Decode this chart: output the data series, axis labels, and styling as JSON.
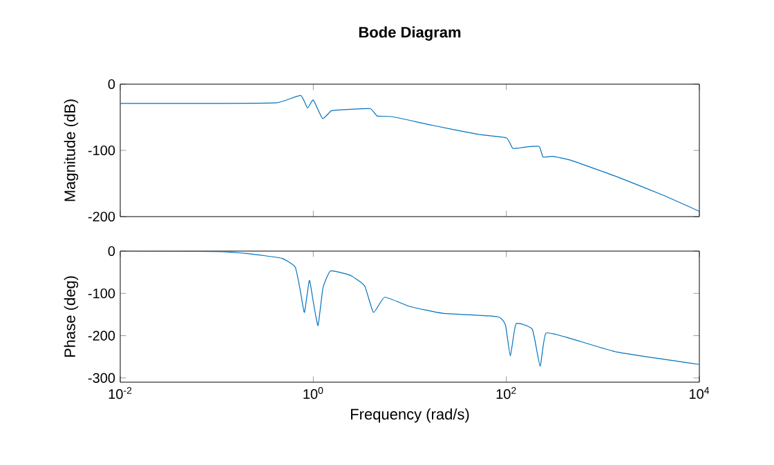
{
  "chart_data": [
    {
      "type": "line",
      "title": "Bode Diagram",
      "ylabel": "Magnitude (dB)",
      "log": "x",
      "tick_labels": "y",
      "grid": false,
      "xlim": [
        0.01,
        10000
      ],
      "ylim": [
        -200,
        0
      ],
      "xticks": [
        {
          "value": 0.01,
          "label": null
        },
        {
          "value": 1,
          "label": null
        },
        {
          "value": 100,
          "label": null
        },
        {
          "value": 10000,
          "label": null
        }
      ],
      "yticks": [
        -200,
        -100,
        0
      ],
      "series": [
        {
          "color": "#0072bd",
          "x": [
            0.01,
            0.1,
            0.42,
            0.74,
            0.87,
            1,
            1.25,
            1.55,
            2.4,
            3.9,
            4.6,
            6.5,
            17,
            52,
            100,
            117,
            158,
            219,
            240,
            302,
            468,
            1413,
            4266,
            10000
          ],
          "values": [
            -29,
            -29,
            -28,
            -17,
            -36,
            -24,
            -52,
            -40,
            -38,
            -37,
            -48,
            -49,
            -62,
            -76,
            -81,
            -97,
            -95,
            -94,
            -110,
            -109,
            -115,
            -140,
            -168,
            -192
          ]
        }
      ]
    },
    {
      "type": "line",
      "xlabel": "Frequency (rad/s)",
      "ylabel": "Phase (deg)",
      "log": "x",
      "grid": false,
      "xlim": [
        0.01,
        10000
      ],
      "ylim": [
        -310,
        0
      ],
      "xticks": [
        {
          "value": 0.01,
          "label": "10$^{-2}$"
        },
        {
          "value": 1,
          "label": "10$^{0}$"
        },
        {
          "value": 100,
          "label": "10$^{2}$"
        },
        {
          "value": 10000,
          "label": "10$^{4}$"
        }
      ],
      "yticks": [
        -300,
        -200,
        -100,
        0
      ],
      "series": [
        {
          "color": "#0072bd",
          "x": [
            0.01,
            0.1,
            0.21,
            0.47,
            0.65,
            0.74,
            0.81,
            0.91,
            1,
            1.12,
            1.26,
            1.51,
            2.4,
            3.4,
            4.2,
            5.5,
            10,
            22,
            81,
            98,
            110,
            126,
            186,
            224,
            257,
            468,
            1413,
            10000
          ],
          "values": [
            0,
            -1,
            -6,
            -17,
            -38,
            -98,
            -145,
            -69,
            -120,
            -176,
            -87,
            -47,
            -57,
            -82,
            -145,
            -109,
            -131,
            -147,
            -155,
            -175,
            -248,
            -172,
            -185,
            -272,
            -194,
            -207,
            -239,
            -268
          ]
        }
      ]
    }
  ]
}
